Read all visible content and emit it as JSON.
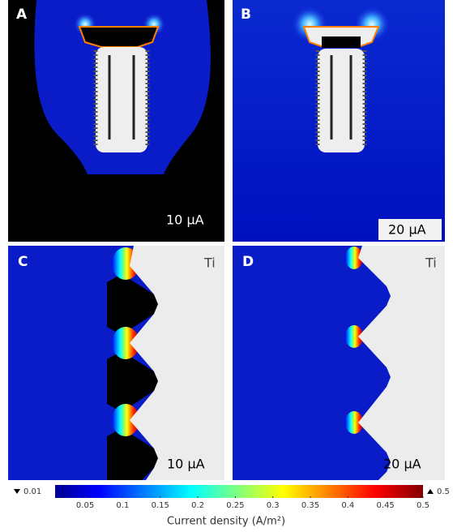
{
  "panels": [
    {
      "label": "A",
      "current": "10 μA"
    },
    {
      "label": "B",
      "current": "20 μA"
    },
    {
      "label": "C",
      "current": "10 μA",
      "material": "Ti"
    },
    {
      "label": "D",
      "current": "20 μA",
      "material": "Ti"
    }
  ],
  "colorbar": {
    "title": "Current density (A/m²)",
    "min": {
      "value": 0.01,
      "label": "0.01"
    },
    "max": {
      "value": 0.5,
      "label": "0.5"
    },
    "ticks": [
      0.05,
      0.1,
      0.15,
      0.2,
      0.25,
      0.3,
      0.35,
      0.4,
      0.45,
      0.5
    ]
  }
}
